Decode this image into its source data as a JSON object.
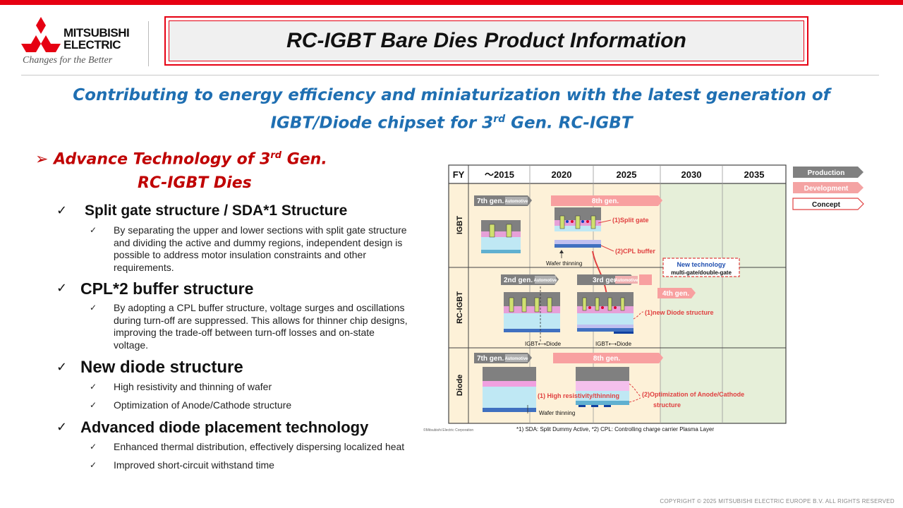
{
  "brand": {
    "logo_lines": [
      "MITSUBISHI",
      "ELECTRIC"
    ],
    "tagline": "Changes for the Better",
    "red": "#e60012"
  },
  "title": "RC-IGBT Bare Dies Product Information",
  "subtitle": {
    "line1": "Contributing to energy efficiency and miniaturization with the latest generation of",
    "line2_pre": "IGBT/Diode chipset for 3",
    "line2_sup": "rd",
    "line2_post": " Gen. RC-IGBT"
  },
  "advance": {
    "marker": "➢",
    "line1_pre": "Advance Technology of 3",
    "line1_sup": "rd",
    "line1_post": " Gen.",
    "line2": "RC-IGBT Dies"
  },
  "features": [
    {
      "check": "✓",
      "title": "Split gate structure / SDA*1 Structure",
      "subs": [
        {
          "check": "✓",
          "text": "By separating the upper and lower sections with split gate structure and dividing the active and dummy regions, independent design is possible to address motor insulation constraints and other requirements."
        }
      ]
    },
    {
      "check": "✓",
      "title": "CPL*2 buffer structure",
      "subs": [
        {
          "check": "✓",
          "text": "By adopting a CPL buffer structure, voltage surges and oscillations during turn-off are suppressed. This allows for thinner chip designs, improving the trade-off between turn-off losses and on-state voltage."
        }
      ]
    },
    {
      "check": "✓",
      "title": "New diode structure",
      "subs": [
        {
          "check": "✓",
          "text": "High resistivity and thinning of wafer"
        },
        {
          "check": "✓",
          "text": "Optimization of Anode/Cathode structure"
        }
      ]
    },
    {
      "check": "✓",
      "title": "Advanced diode placement technology",
      "subs": [
        {
          "check": "✓",
          "text": "Enhanced thermal distribution, effectively dispersing localized heat"
        },
        {
          "check": "✓",
          "text": "Improved short-circuit withstand time"
        }
      ]
    }
  ],
  "roadmap": {
    "fy_label": "FY",
    "years": [
      "～2015",
      "2020",
      "2025",
      "2030",
      "2035"
    ],
    "rows": [
      "IGBT",
      "RC-IGBT",
      "Diode"
    ],
    "legend": [
      {
        "label": "Production",
        "color": "#808080"
      },
      {
        "label": "Development",
        "color": "#f4a3a3"
      },
      {
        "label": "Concept",
        "color": "#ffffff"
      }
    ],
    "colors": {
      "past": "#fdf1d8",
      "future": "#e6efd9",
      "pink": "#f8a0a0",
      "gray": "#7f7f7f",
      "red": "#e04040"
    },
    "igbt": {
      "gen7": "7th gen.",
      "automotive": "Automotive",
      "gen8": "8th gen.",
      "split_gate": "(1)Split gate",
      "cpl_buffer": "(2)CPL buffer",
      "wafer_thinning": "Wafer thinning",
      "new_tech_title": "New technology",
      "new_tech_desc": "multi-gate/double-gate"
    },
    "rcigbt": {
      "gen2": "2nd gen.",
      "automotive": "Automotive",
      "gen3": "3rd gen.",
      "automotive2": "Automotive",
      "gen4": "4th gen.",
      "new_diode": "(1)new Diode structure",
      "igbt_diode": "IGBT⟷Diode"
    },
    "diode": {
      "gen7": "7th gen.",
      "automotive": "Automotive",
      "gen8": "8th gen.",
      "high_res": "(1) High resistivity/thinning",
      "optim1": "(2)Optimization of Anode/Cathode",
      "optim2": "structure",
      "wafer_thinning": "Wafer thinning"
    },
    "copyright_small": "©Mitsubishi Electric Corporation",
    "footnote": "*1) SDA: Split Dummy Active, *2) CPL: Controlling charge carrier Plasma Layer"
  },
  "footer": "COPYRIGHT © 2025 MITSUBISHI ELECTRIC EUROPE B.V. ALL RIGHTS RESERVED"
}
